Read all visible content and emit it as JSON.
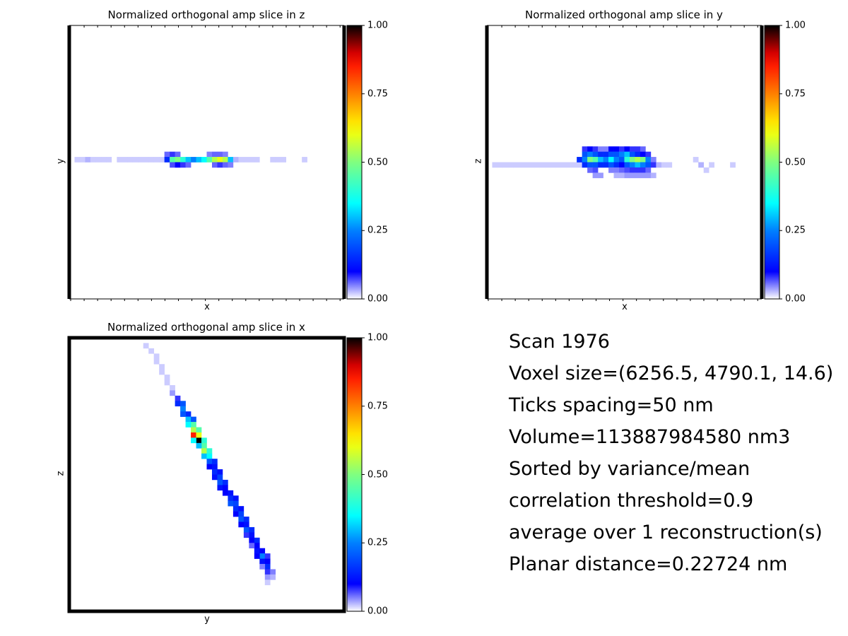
{
  "colorbar": {
    "ticks": [
      "0.00",
      "0.25",
      "0.50",
      "0.75",
      "1.00"
    ],
    "colormap": "jet"
  },
  "panels": [
    {
      "title": "Normalized orthogonal amp slice in z",
      "xlabel": "x",
      "ylabel": "y"
    },
    {
      "title": "Normalized orthogonal amp slice in y",
      "xlabel": "x",
      "ylabel": "z"
    },
    {
      "title": "Normalized orthogonal amp slice in x",
      "xlabel": "y",
      "ylabel": "z"
    }
  ],
  "info": [
    "Scan 1976",
    "Voxel size=(6256.5, 4790.1, 14.6)",
    "Ticks spacing=50 nm",
    "Volume=113887984580 nm3",
    "Sorted by variance/mean",
    "correlation threshold=0.9",
    "average over 1 reconstruction(s)",
    "Planar distance=0.22724 nm"
  ],
  "chart_data": [
    {
      "type": "heatmap",
      "title": "Normalized orthogonal amp slice in z",
      "xlabel": "x",
      "ylabel": "y",
      "clim": [
        0,
        1
      ],
      "colormap": "jet",
      "grid_size": [
        52,
        52
      ],
      "cells": [
        [
          1,
          25,
          0.02
        ],
        [
          2,
          25,
          0.02
        ],
        [
          3,
          25,
          0.03
        ],
        [
          4,
          25,
          0.02
        ],
        [
          5,
          25,
          0.02
        ],
        [
          6,
          25,
          0.02
        ],
        [
          7,
          25,
          0.02
        ],
        [
          9,
          25,
          0.02
        ],
        [
          10,
          25,
          0.02
        ],
        [
          11,
          25,
          0.02
        ],
        [
          12,
          25,
          0.02
        ],
        [
          13,
          25,
          0.02
        ],
        [
          14,
          25,
          0.02
        ],
        [
          15,
          25,
          0.02
        ],
        [
          16,
          25,
          0.02
        ],
        [
          17,
          25,
          0.02
        ],
        [
          18,
          24,
          0.06
        ],
        [
          19,
          24,
          0.08
        ],
        [
          20,
          24,
          0.06
        ],
        [
          26,
          24,
          0.05
        ],
        [
          27,
          24,
          0.06
        ],
        [
          28,
          24,
          0.06
        ],
        [
          29,
          24,
          0.05
        ],
        [
          18,
          25,
          0.15
        ],
        [
          19,
          25,
          0.45
        ],
        [
          20,
          25,
          0.5
        ],
        [
          21,
          25,
          0.4
        ],
        [
          22,
          25,
          0.3
        ],
        [
          23,
          25,
          0.25
        ],
        [
          24,
          25,
          0.3
        ],
        [
          25,
          25,
          0.35
        ],
        [
          26,
          25,
          0.45
        ],
        [
          27,
          25,
          0.55
        ],
        [
          28,
          25,
          0.6
        ],
        [
          29,
          25,
          0.55
        ],
        [
          30,
          25,
          0.3
        ],
        [
          19,
          26,
          0.07
        ],
        [
          20,
          26,
          0.1
        ],
        [
          21,
          26,
          0.08
        ],
        [
          22,
          26,
          0.06
        ],
        [
          27,
          26,
          0.06
        ],
        [
          28,
          26,
          0.08
        ],
        [
          29,
          26,
          0.06
        ],
        [
          30,
          26,
          0.05
        ],
        [
          31,
          25,
          0.03
        ],
        [
          32,
          25,
          0.02
        ],
        [
          33,
          25,
          0.02
        ],
        [
          34,
          25,
          0.02
        ],
        [
          35,
          25,
          0.02
        ],
        [
          38,
          25,
          0.02
        ],
        [
          39,
          25,
          0.02
        ],
        [
          40,
          25,
          0.02
        ],
        [
          44,
          25,
          0.02
        ]
      ]
    },
    {
      "type": "heatmap",
      "title": "Normalized orthogonal amp slice in y",
      "xlabel": "x",
      "ylabel": "z",
      "clim": [
        0,
        1
      ],
      "colormap": "jet",
      "grid_size": [
        52,
        52
      ],
      "cells": [
        [
          1,
          26,
          0.02
        ],
        [
          2,
          26,
          0.02
        ],
        [
          3,
          26,
          0.02
        ],
        [
          4,
          26,
          0.02
        ],
        [
          5,
          26,
          0.02
        ],
        [
          6,
          26,
          0.02
        ],
        [
          7,
          26,
          0.02
        ],
        [
          8,
          26,
          0.02
        ],
        [
          9,
          26,
          0.02
        ],
        [
          10,
          26,
          0.02
        ],
        [
          11,
          26,
          0.02
        ],
        [
          12,
          26,
          0.02
        ],
        [
          13,
          26,
          0.02
        ],
        [
          14,
          26,
          0.02
        ],
        [
          15,
          26,
          0.02
        ],
        [
          16,
          26,
          0.02
        ],
        [
          17,
          26,
          0.02
        ],
        [
          18,
          23,
          0.08
        ],
        [
          19,
          23,
          0.1
        ],
        [
          20,
          23,
          0.08
        ],
        [
          21,
          23,
          0.05
        ],
        [
          22,
          23,
          0.05
        ],
        [
          23,
          23,
          0.1
        ],
        [
          24,
          23,
          0.1
        ],
        [
          25,
          23,
          0.08
        ],
        [
          26,
          23,
          0.1
        ],
        [
          27,
          23,
          0.08
        ],
        [
          28,
          23,
          0.08
        ],
        [
          29,
          23,
          0.06
        ],
        [
          18,
          24,
          0.2
        ],
        [
          19,
          24,
          0.25
        ],
        [
          20,
          24,
          0.2
        ],
        [
          21,
          24,
          0.15
        ],
        [
          22,
          24,
          0.15
        ],
        [
          23,
          24,
          0.2
        ],
        [
          24,
          24,
          0.2
        ],
        [
          25,
          24,
          0.25
        ],
        [
          26,
          24,
          0.3
        ],
        [
          27,
          24,
          0.2
        ],
        [
          28,
          24,
          0.15
        ],
        [
          29,
          24,
          0.1
        ],
        [
          30,
          24,
          0.08
        ],
        [
          17,
          25,
          0.15
        ],
        [
          18,
          25,
          0.25
        ],
        [
          19,
          25,
          0.5
        ],
        [
          20,
          25,
          0.45
        ],
        [
          21,
          25,
          0.3
        ],
        [
          22,
          25,
          0.25
        ],
        [
          23,
          25,
          0.35
        ],
        [
          24,
          25,
          0.25
        ],
        [
          25,
          25,
          0.2
        ],
        [
          26,
          25,
          0.4
        ],
        [
          27,
          25,
          0.5
        ],
        [
          28,
          25,
          0.55
        ],
        [
          29,
          25,
          0.5
        ],
        [
          30,
          25,
          0.25
        ],
        [
          31,
          25,
          0.05
        ],
        [
          18,
          26,
          0.15
        ],
        [
          19,
          26,
          0.2
        ],
        [
          20,
          26,
          0.2
        ],
        [
          21,
          26,
          0.15
        ],
        [
          22,
          26,
          0.15
        ],
        [
          23,
          26,
          0.2
        ],
        [
          24,
          26,
          0.15
        ],
        [
          25,
          26,
          0.1
        ],
        [
          26,
          26,
          0.2
        ],
        [
          27,
          26,
          0.25
        ],
        [
          28,
          26,
          0.3
        ],
        [
          29,
          26,
          0.25
        ],
        [
          30,
          26,
          0.2
        ],
        [
          31,
          26,
          0.08
        ],
        [
          32,
          26,
          0.03
        ],
        [
          33,
          26,
          0.02
        ],
        [
          34,
          26,
          0.02
        ],
        [
          19,
          27,
          0.06
        ],
        [
          20,
          27,
          0.07
        ],
        [
          23,
          27,
          0.05
        ],
        [
          24,
          27,
          0.05
        ],
        [
          25,
          27,
          0.06
        ],
        [
          26,
          27,
          0.07
        ],
        [
          27,
          27,
          0.08
        ],
        [
          28,
          27,
          0.08
        ],
        [
          29,
          27,
          0.08
        ],
        [
          30,
          27,
          0.06
        ],
        [
          20,
          28,
          0.04
        ],
        [
          21,
          28,
          0.04
        ],
        [
          24,
          28,
          0.03
        ],
        [
          25,
          28,
          0.03
        ],
        [
          26,
          28,
          0.04
        ],
        [
          27,
          28,
          0.04
        ],
        [
          28,
          28,
          0.04
        ],
        [
          29,
          28,
          0.04
        ],
        [
          30,
          28,
          0.04
        ],
        [
          31,
          28,
          0.03
        ],
        [
          39,
          25,
          0.02
        ],
        [
          40,
          26,
          0.03
        ],
        [
          41,
          27,
          0.02
        ],
        [
          42,
          26,
          0.02
        ],
        [
          46,
          26,
          0.02
        ]
      ]
    },
    {
      "type": "heatmap",
      "title": "Normalized orthogonal amp slice in x",
      "xlabel": "y",
      "ylabel": "z",
      "clim": [
        0,
        1
      ],
      "colormap": "jet",
      "grid_size": [
        52,
        52
      ],
      "cells": [
        [
          14,
          1,
          0.02
        ],
        [
          15,
          2,
          0.02
        ],
        [
          16,
          3,
          0.02
        ],
        [
          16,
          4,
          0.02
        ],
        [
          17,
          5,
          0.02
        ],
        [
          17,
          6,
          0.02
        ],
        [
          18,
          7,
          0.02
        ],
        [
          18,
          8,
          0.02
        ],
        [
          19,
          9,
          0.02
        ],
        [
          19,
          10,
          0.04
        ],
        [
          20,
          11,
          0.08
        ],
        [
          20,
          12,
          0.15
        ],
        [
          21,
          12,
          0.2
        ],
        [
          21,
          13,
          0.25
        ],
        [
          22,
          14,
          0.15
        ],
        [
          21,
          14,
          0.2
        ],
        [
          22,
          15,
          0.3
        ],
        [
          23,
          15,
          0.2
        ],
        [
          23,
          16,
          0.45
        ],
        [
          22,
          16,
          0.35
        ],
        [
          23,
          17,
          0.55
        ],
        [
          24,
          17,
          0.45
        ],
        [
          23,
          18,
          0.85
        ],
        [
          24,
          18,
          0.6
        ],
        [
          24,
          19,
          1.0
        ],
        [
          23,
          19,
          0.35
        ],
        [
          25,
          19,
          0.4
        ],
        [
          25,
          20,
          0.45
        ],
        [
          24,
          20,
          0.3
        ],
        [
          25,
          21,
          0.55
        ],
        [
          26,
          21,
          0.4
        ],
        [
          25,
          22,
          0.3
        ],
        [
          26,
          22,
          0.35
        ],
        [
          26,
          23,
          0.2
        ],
        [
          27,
          23,
          0.15
        ],
        [
          26,
          24,
          0.1
        ],
        [
          27,
          24,
          0.12
        ],
        [
          27,
          25,
          0.15
        ],
        [
          28,
          25,
          0.12
        ],
        [
          27,
          26,
          0.12
        ],
        [
          28,
          26,
          0.18
        ],
        [
          28,
          27,
          0.2
        ],
        [
          29,
          27,
          0.15
        ],
        [
          28,
          28,
          0.12
        ],
        [
          29,
          28,
          0.1
        ],
        [
          29,
          29,
          0.1
        ],
        [
          30,
          29,
          0.12
        ],
        [
          30,
          30,
          0.15
        ],
        [
          31,
          30,
          0.12
        ],
        [
          30,
          31,
          0.2
        ],
        [
          31,
          31,
          0.18
        ],
        [
          31,
          32,
          0.15
        ],
        [
          32,
          32,
          0.12
        ],
        [
          31,
          33,
          0.1
        ],
        [
          32,
          33,
          0.18
        ],
        [
          32,
          34,
          0.2
        ],
        [
          33,
          34,
          0.15
        ],
        [
          33,
          35,
          0.12
        ],
        [
          32,
          35,
          0.1
        ],
        [
          33,
          36,
          0.2
        ],
        [
          34,
          36,
          0.15
        ],
        [
          34,
          37,
          0.12
        ],
        [
          33,
          37,
          0.08
        ],
        [
          34,
          38,
          0.1
        ],
        [
          35,
          38,
          0.15
        ],
        [
          35,
          39,
          0.1
        ],
        [
          34,
          39,
          0.06
        ],
        [
          35,
          40,
          0.12
        ],
        [
          36,
          40,
          0.1
        ],
        [
          36,
          41,
          0.25
        ],
        [
          35,
          41,
          0.1
        ],
        [
          37,
          41,
          0.08
        ],
        [
          36,
          42,
          0.12
        ],
        [
          37,
          42,
          0.1
        ],
        [
          37,
          43,
          0.15
        ],
        [
          36,
          43,
          0.05
        ],
        [
          37,
          44,
          0.08
        ],
        [
          38,
          44,
          0.05
        ],
        [
          37,
          45,
          0.04
        ],
        [
          38,
          45,
          0.03
        ],
        [
          37,
          46,
          0.02
        ]
      ]
    }
  ]
}
